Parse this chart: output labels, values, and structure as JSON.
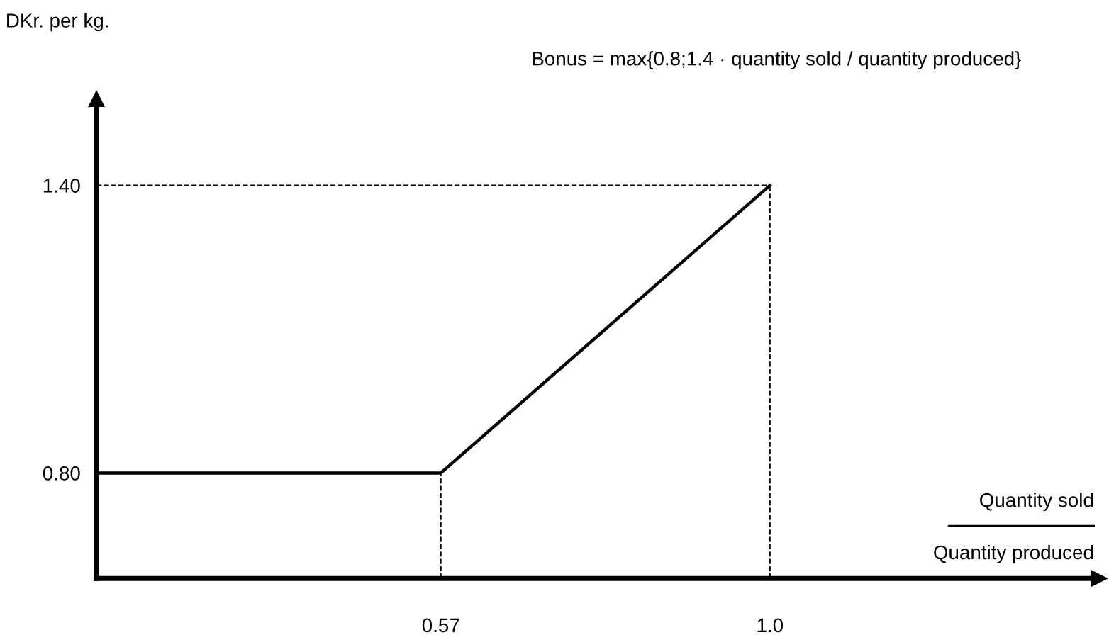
{
  "chart_data": {
    "type": "line",
    "ylabel": "DKr. per kg.",
    "xlabel": "Quantity sold\nQuantity produced",
    "series": [
      {
        "color": "#000000",
        "x": [
          0.12,
          0.57,
          1.0
        ],
        "values": [
          0.8,
          0.8,
          1.4
        ]
      }
    ],
    "xlim": [
      0.12,
      1.43
    ],
    "ylim": [
      0.58,
      1.58
    ],
    "xticks": [
      0.57,
      {
        "value": 1.0,
        "label": "1.0"
      }
    ],
    "yticks": [
      {
        "value": 0.8,
        "label": "0.80"
      },
      {
        "value": 1.4,
        "label": "1.40"
      }
    ],
    "ref_lines": [
      {
        "axis": "x",
        "value": 0.57,
        "color": "#000000",
        "line_style": "dashed"
      },
      {
        "axis": "x",
        "value": 1.0,
        "color": "#000000",
        "line_style": "dashed"
      },
      {
        "axis": "y",
        "value": 1.4,
        "color": "#000000",
        "line_style": "dashed"
      }
    ],
    "annotations": [
      "Bonus = max{0.8;1.4 · quantity sold / quantity produced}"
    ],
    "grid": false,
    "marker": "none",
    "line_style": "solid"
  }
}
